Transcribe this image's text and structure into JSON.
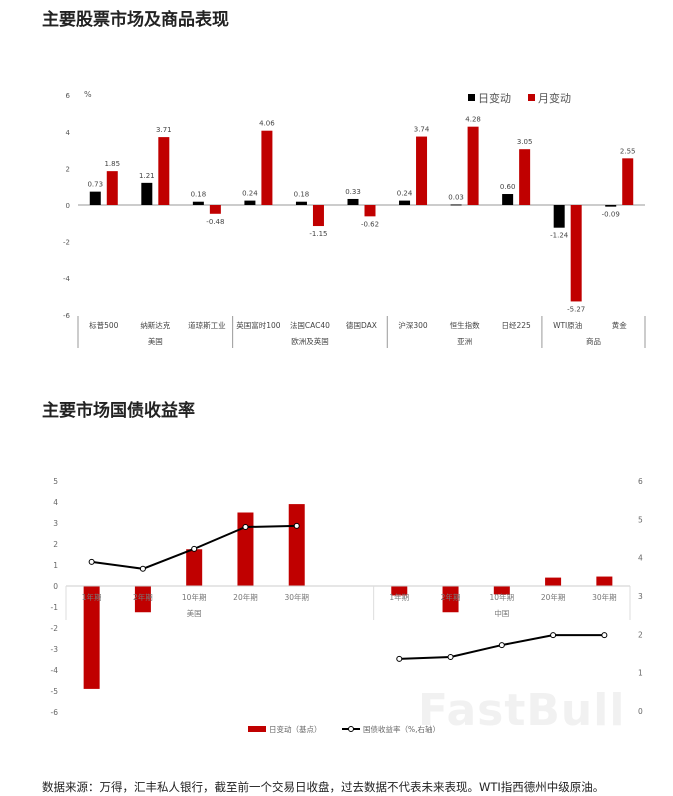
{
  "chart_data": [
    {
      "type": "bar",
      "title": "主要股票市场及商品表现",
      "ylabel": "%",
      "ylim": [
        -6,
        6
      ],
      "yticks": [
        -6,
        -4,
        -2,
        0,
        2,
        4,
        6
      ],
      "legend_position": "top-right",
      "categories": [
        "标普500",
        "纳斯达克",
        "道琼斯工业",
        "英国富时100",
        "法国CAC40",
        "德国DAX",
        "沪深300",
        "恒生指数",
        "日经225",
        "WTI原油",
        "黄金"
      ],
      "groups": [
        {
          "label": "美国",
          "count": 3
        },
        {
          "label": "欧洲及英国",
          "count": 3
        },
        {
          "label": "亚洲",
          "count": 3
        },
        {
          "label": "商品",
          "count": 2
        }
      ],
      "series": [
        {
          "name": "日变动",
          "color": "#000000",
          "values": [
            0.73,
            1.21,
            0.18,
            0.24,
            0.18,
            0.33,
            0.24,
            0.03,
            0.6,
            -1.24,
            -0.09
          ],
          "labels": [
            "0.73",
            "1.21",
            "0.18",
            "0.24",
            "0.18",
            "0.33",
            "0.24",
            "0.03",
            "0.60",
            "-1.24",
            "-0.09"
          ]
        },
        {
          "name": "月变动",
          "color": "#c00000",
          "values": [
            1.85,
            3.71,
            -0.48,
            4.06,
            -1.15,
            -0.62,
            3.74,
            4.28,
            3.05,
            -5.27,
            2.55
          ],
          "labels": [
            "1.85",
            "3.71",
            "-0.48",
            "4.06",
            "-1.15",
            "-0.62",
            "3.74",
            "4.28",
            "3.05",
            "-5.27",
            "2.55"
          ]
        }
      ]
    },
    {
      "type": "bar+line",
      "title": "主要市场国债收益率",
      "ylim": [
        -6,
        5
      ],
      "yticks": [
        -6,
        -5,
        -4,
        -3,
        -2,
        -1,
        0,
        1,
        2,
        3,
        4,
        5
      ],
      "y2lim": [
        0,
        6
      ],
      "y2ticks": [
        0,
        1,
        2,
        3,
        4,
        5,
        6
      ],
      "legend_position": "bottom",
      "categories": [
        "1年期",
        "2年期",
        "10年期",
        "20年期",
        "30年期",
        "",
        "1年期",
        "2年期",
        "10年期",
        "20年期",
        "30年期"
      ],
      "groups": [
        {
          "label": "美国",
          "count": 6
        },
        {
          "label": "中国",
          "count": 5
        }
      ],
      "series": [
        {
          "name": "日变动（基点）",
          "type": "bar",
          "color": "#c00000",
          "values": [
            -4.9,
            -1.25,
            1.75,
            3.5,
            3.9,
            null,
            -0.45,
            -1.25,
            -0.4,
            0.4,
            0.45
          ]
        },
        {
          "name": "国债收益率（%,右轴）",
          "type": "line",
          "axis": "right",
          "color": "#000000",
          "values": [
            3.89,
            3.71,
            4.23,
            4.8,
            4.83,
            null,
            1.36,
            1.41,
            1.72,
            1.98,
            1.98
          ]
        }
      ]
    }
  ],
  "footer": "数据来源：万得，汇丰私人银行，截至前一个交易日收盘，过去数据不代表未来表现。WTI指西德州中级原油。",
  "watermark": "FastBull"
}
